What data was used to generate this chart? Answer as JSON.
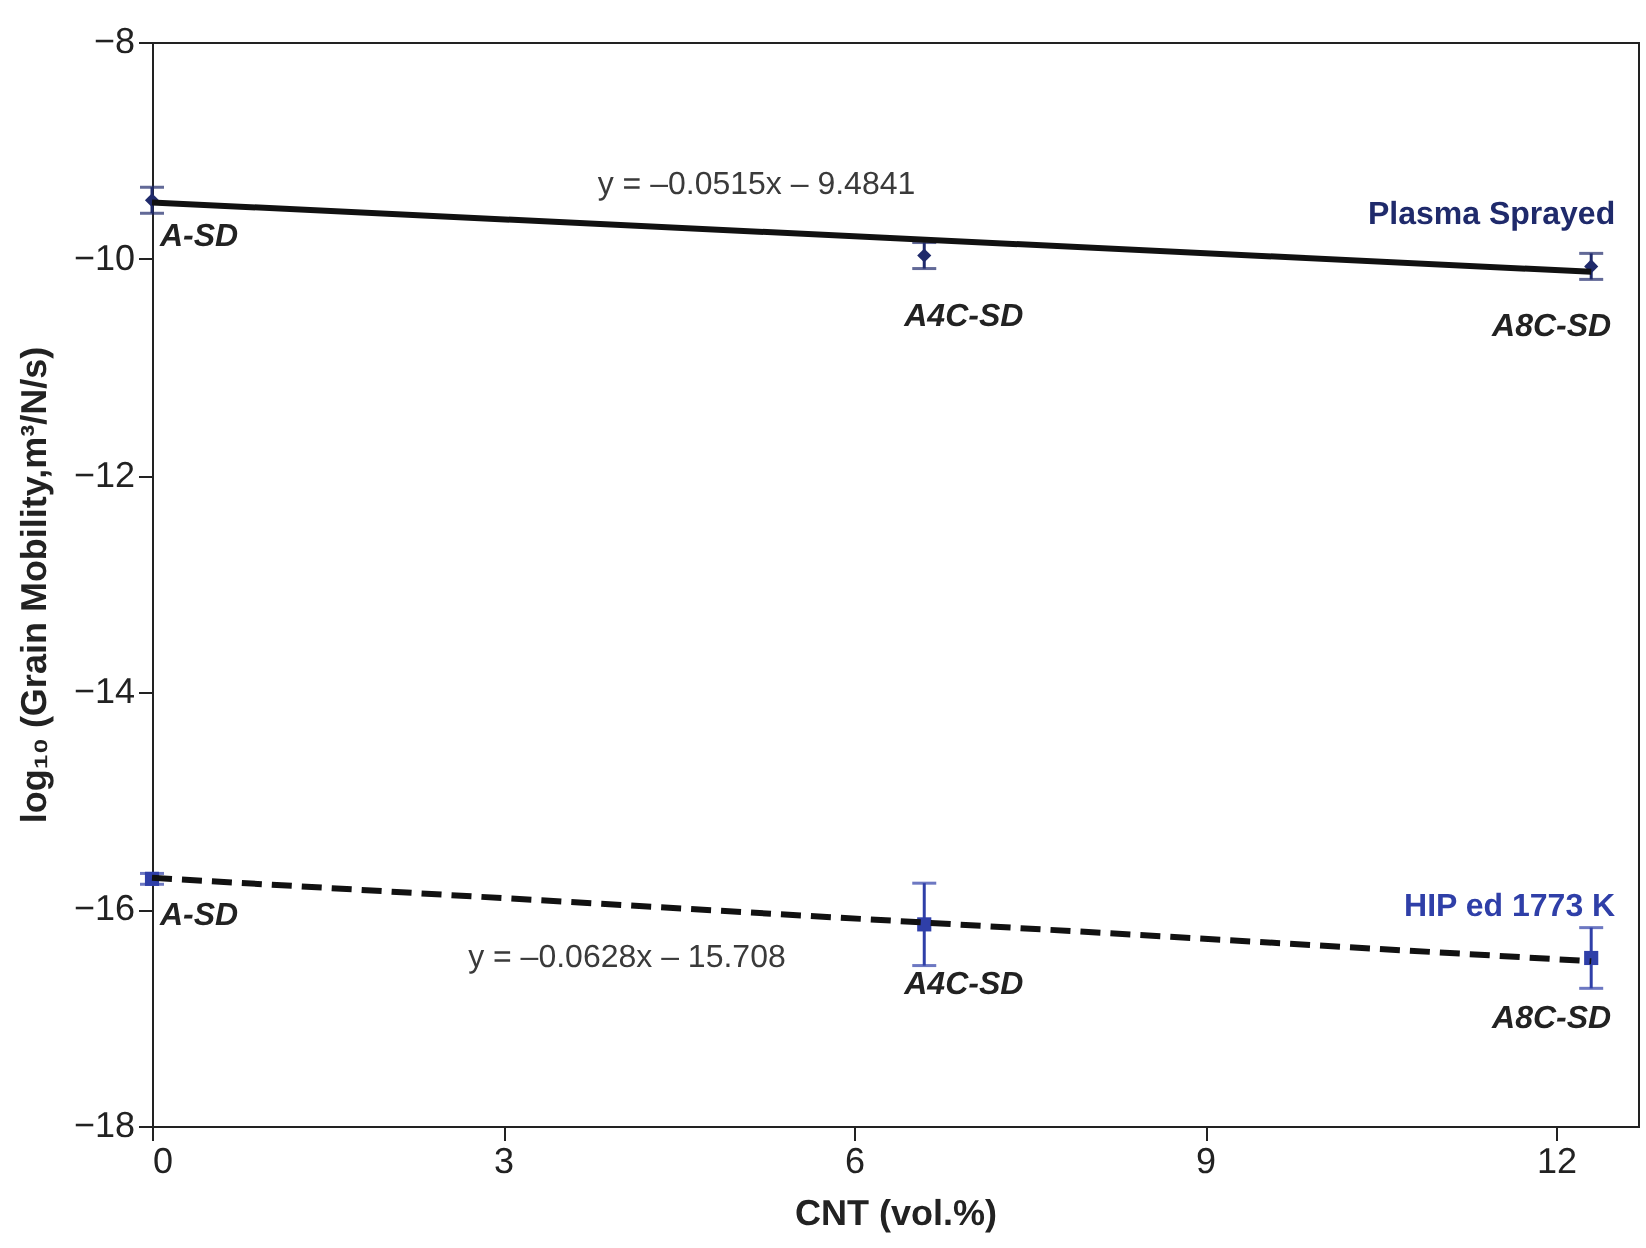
{
  "chart_data": {
    "type": "scatter",
    "xlabel": "CNT (vol.%)",
    "ylabel": "log₁₀ (Grain Mobility,m³/N/s)",
    "xlim": [
      0,
      12.7
    ],
    "ylim": [
      -18,
      -8
    ],
    "xticks": [
      0,
      3,
      6,
      9,
      12
    ],
    "yticks": [
      -18,
      -16,
      -14,
      -12,
      -10,
      -8
    ],
    "series": [
      {
        "name": "Plasma Sprayed",
        "marker": "diamond",
        "color": "#1f2a6b",
        "x": [
          0,
          6.6,
          12.3
        ],
        "values": [
          -9.46,
          -9.97,
          -10.07
        ],
        "errors": [
          0.12,
          0.12,
          0.12
        ],
        "value_labels": [
          "A-SD",
          "A4C-SD",
          "A8C-SD"
        ]
      },
      {
        "name": "y = –0.0515x – 9.4841",
        "type": "line",
        "marker": "none",
        "line_style": "solid",
        "color": "#111111",
        "x": [
          0,
          12.3
        ],
        "values": [
          -9.48,
          -10.12
        ]
      },
      {
        "name": "HIP   ed 1773 K",
        "marker": "square",
        "color": "#2f3fa8",
        "x": [
          0,
          6.6,
          12.3
        ],
        "values": [
          -15.72,
          -16.14,
          -16.45
        ],
        "errors": [
          0.05,
          0.38,
          0.28
        ],
        "value_labels": [
          "A-SD",
          "A4C-SD",
          "A8C-SD"
        ]
      },
      {
        "name": "y = –0.0628x – 15.708",
        "type": "line",
        "marker": "none",
        "line_style": "dashed",
        "color": "#111111",
        "x": [
          0,
          12.3
        ],
        "values": [
          -15.71,
          -16.48
        ]
      }
    ]
  }
}
